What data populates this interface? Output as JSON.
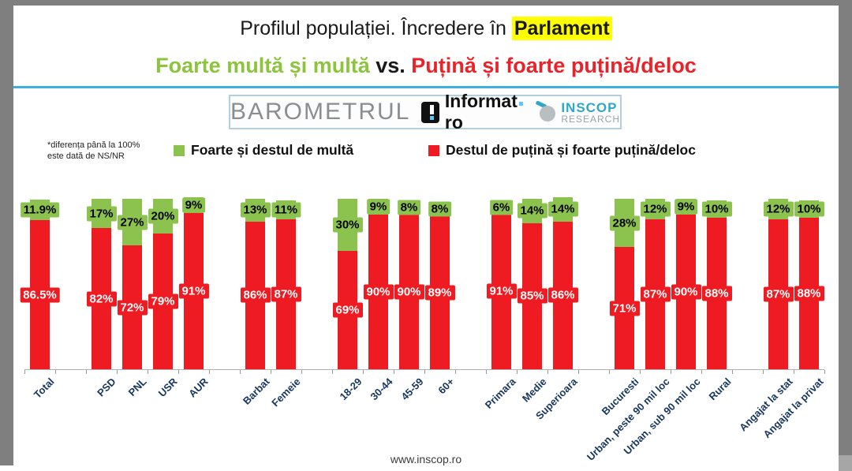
{
  "header": {
    "title_prefix": "Profilul populației. Încredere în ",
    "title_highlight": "Parlament",
    "subtitle_green": "Foarte multă și multă",
    "subtitle_vs": " vs. ",
    "subtitle_red": "Puțină și foarte puțină/deloc"
  },
  "logobar": {
    "barometrul": "BAROMETRUL",
    "informat_name": "Informat",
    "informat_tld": "ro",
    "inscop_line1": "INSCOP",
    "inscop_line2": "RESEARCH"
  },
  "note": {
    "line1": "*diferența până la 100%",
    "line2": "este dată de NS/NR"
  },
  "legend": {
    "green_label": "Foarte și destul de multă",
    "red_label": "Destul de puțină și foarte puțină/deloc",
    "green_color": "#8cc24e",
    "red_color": "#ee1b22"
  },
  "footer": {
    "url": "www.inscop.ro"
  },
  "chart_data": {
    "type": "bar",
    "stacked": true,
    "ylim": [
      0,
      100
    ],
    "grid": false,
    "legend_position": "top",
    "categories": [
      "Total",
      "PSD",
      "PNL",
      "USR",
      "AUR",
      "Barbat",
      "Femeie",
      "18-29",
      "30-44",
      "45-59",
      "60+",
      "Primara",
      "Medie",
      "Superioara",
      "Bucuresti",
      "Urban, peste 90 mil loc",
      "Urban, sub 90 mil loc",
      "Rural",
      "Angajat la stat",
      "Angajat la privat"
    ],
    "group_slots": [
      0,
      2,
      3,
      4,
      5,
      7,
      8,
      10,
      11,
      12,
      13,
      15,
      16,
      17,
      19,
      20,
      21,
      22,
      24,
      25
    ],
    "series": [
      {
        "name": "Foarte și destul de multă",
        "color": "#8cc24e",
        "values": [
          11.9,
          17,
          27,
          20,
          9,
          13,
          11,
          30,
          9,
          8,
          8,
          6,
          14,
          14,
          28,
          12,
          9,
          10,
          12,
          10
        ],
        "labels": [
          "11.9%",
          "17%",
          "27%",
          "20%",
          "9%",
          "13%",
          "11%",
          "30%",
          "9%",
          "8%",
          "8%",
          "6%",
          "14%",
          "14%",
          "28%",
          "12%",
          "9%",
          "10%",
          "12%",
          "10%"
        ]
      },
      {
        "name": "Destul de puțină și foarte puțină/deloc",
        "color": "#ee1b22",
        "values": [
          86.5,
          82,
          72,
          79,
          91,
          86,
          87,
          69,
          90,
          90,
          89,
          91,
          85,
          86,
          71,
          87,
          90,
          88,
          87,
          88
        ],
        "labels": [
          "86.5%",
          "82%",
          "72%",
          "79%",
          "91%",
          "86%",
          "87%",
          "69%",
          "90%",
          "90%",
          "89%",
          "91%",
          "85%",
          "86%",
          "71%",
          "87%",
          "90%",
          "88%",
          "87%",
          "88%"
        ]
      }
    ],
    "footnote": "*diferența până la 100% este dată de NS/NR",
    "source": "www.inscop.ro"
  }
}
